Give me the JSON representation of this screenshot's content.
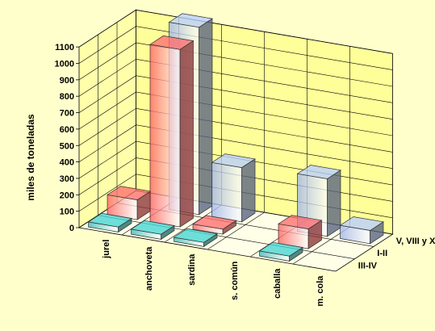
{
  "chart_data": {
    "type": "bar",
    "subtype": "3d-column",
    "title": "",
    "ylabel": "miles de toneladas",
    "xlabel": "",
    "ylim": [
      0,
      1100
    ],
    "yticks": [
      0,
      100,
      200,
      300,
      400,
      500,
      600,
      700,
      800,
      900,
      1000,
      1100
    ],
    "categories": [
      "jurel",
      "anchoveta",
      "sardina",
      "s. común",
      "caballa",
      "m. cola"
    ],
    "series": [
      {
        "name": "III-IV",
        "values": [
          30,
          30,
          25,
          0,
          30,
          0
        ]
      },
      {
        "name": "I-II",
        "values": [
          120,
          1080,
          30,
          0,
          120,
          0
        ]
      },
      {
        "name": "V, VIII y X",
        "values": [
          0,
          1140,
          330,
          0,
          350,
          80
        ]
      }
    ],
    "grid": true,
    "legend": "none",
    "colors": {
      "background": "#FFFFCC",
      "wall": "#FFFF99",
      "III-IV": "#3BB9B8",
      "I-II": "#FF6060",
      "V, VIII y X": "#9FB3E8"
    }
  }
}
